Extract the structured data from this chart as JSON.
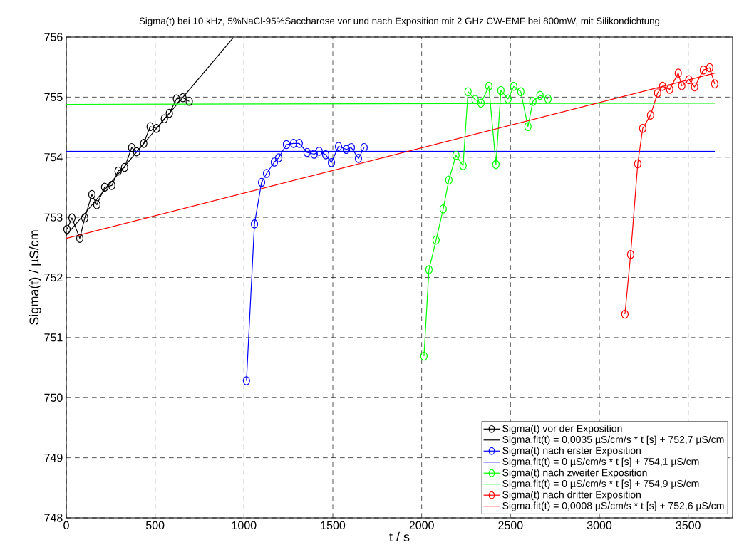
{
  "chart_data": {
    "type": "line",
    "title": "Sigma(t) bei 10 kHz, 5%NaCl-95%Saccharose vor und nach Exposition mit 2 GHz CW-EMF bei 800mW, mit Silikondichtung",
    "xlabel": "t / s",
    "ylabel": "Sigma(t) / µS/cm",
    "xlim": [
      0,
      3750
    ],
    "ylim": [
      748,
      756
    ],
    "xticks": [
      0,
      500,
      1000,
      1500,
      2000,
      2500,
      3000,
      3500
    ],
    "yticks": [
      748,
      749,
      750,
      751,
      752,
      753,
      754,
      755,
      756
    ],
    "grid": true,
    "legend": "bottom right",
    "line_style": "solid",
    "series": [
      {
        "name": "Sigma(t) vor der Exposition",
        "color": "#000000",
        "marker": "circle",
        "x": [
          4,
          32,
          76,
          104,
          144,
          172,
          216,
          256,
          292,
          328,
          368,
          396,
          436,
          472,
          508,
          552,
          580,
          620,
          656,
          692
        ],
        "values": [
          752.8,
          752.99,
          752.65,
          752.99,
          753.38,
          753.21,
          753.5,
          753.53,
          753.77,
          753.83,
          754.16,
          754.09,
          754.23,
          754.51,
          754.48,
          754.64,
          754.73,
          754.97,
          754.99,
          754.93
        ]
      },
      {
        "name": "Sigma,fit(t) = 0,0035 µS/cm/s * t [s]  + 752,7 µS/cm",
        "color": "#000000",
        "marker": "none",
        "x": [
          0,
          940
        ],
        "values": [
          752.7,
          755.99
        ]
      },
      {
        "name": "Sigma(t) nach erster Exposition",
        "color": "#0000ff",
        "marker": "circle",
        "x": [
          1014,
          1059,
          1099,
          1127,
          1171,
          1195,
          1239,
          1279,
          1311,
          1355,
          1395,
          1423,
          1460,
          1492,
          1532,
          1576,
          1604,
          1644,
          1676
        ],
        "values": [
          750.28,
          752.89,
          753.58,
          753.73,
          753.92,
          753.99,
          754.21,
          754.23,
          754.23,
          754.08,
          754.05,
          754.1,
          754.04,
          753.91,
          754.18,
          754.13,
          754.16,
          753.98,
          754.16
        ]
      },
      {
        "name": "Sigma,fit(t) = 0 µS/cm/s * t [s]  + 754,1 µS/cm",
        "color": "#0000ff",
        "marker": "none",
        "x": [
          0,
          3650
        ],
        "values": [
          754.1,
          754.1
        ]
      },
      {
        "name": "Sigma(t) nach zweiter Exposition",
        "color": "#00ff00",
        "marker": "circle",
        "x": [
          2013,
          2041,
          2081,
          2121,
          2153,
          2193,
          2233,
          2261,
          2301,
          2334,
          2378,
          2418,
          2446,
          2486,
          2518,
          2558,
          2598,
          2626,
          2666,
          2711
        ],
        "values": [
          750.69,
          752.13,
          752.62,
          753.14,
          753.62,
          754.03,
          753.86,
          755.09,
          754.96,
          754.9,
          755.18,
          753.88,
          755.11,
          754.97,
          755.18,
          755.09,
          754.51,
          754.93,
          755.03,
          754.97
        ]
      },
      {
        "name": "Sigma,fit(t) = 0 µS/cm/s * t [s]  + 754,9 µS/cm",
        "color": "#00ff00",
        "marker": "none",
        "x": [
          0,
          3650
        ],
        "values": [
          754.88,
          754.9
        ]
      },
      {
        "name": "Sigma(t) nach dritter Exposition",
        "color": "#ff0000",
        "marker": "circle",
        "x": [
          3144,
          3176,
          3216,
          3244,
          3288,
          3328,
          3356,
          3396,
          3444,
          3464,
          3504,
          3536,
          3585,
          3621,
          3649
        ],
        "values": [
          751.39,
          752.38,
          753.89,
          754.48,
          754.7,
          755.07,
          755.18,
          755.13,
          755.4,
          755.19,
          755.29,
          755.17,
          755.45,
          755.49,
          755.22
        ]
      },
      {
        "name": "Sigma,fit(t) = 0,0008 µS/cm/s * t [s]  + 752,6 µS/cm",
        "color": "#ff0000",
        "marker": "none",
        "x": [
          0,
          3650
        ],
        "values": [
          752.65,
          755.4
        ]
      }
    ]
  }
}
